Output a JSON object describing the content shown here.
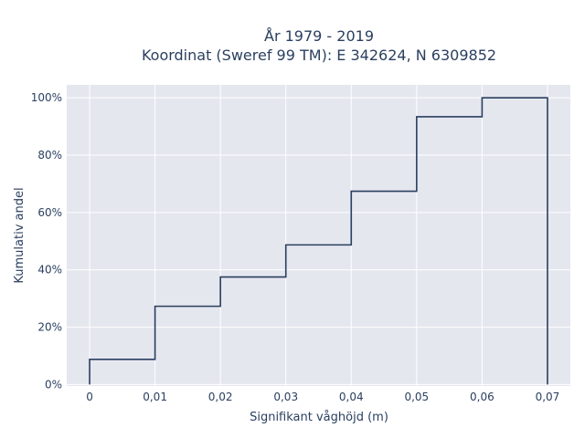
{
  "chart_data": {
    "type": "line",
    "line_shape": "step",
    "title_line1": "År 1979 - 2019",
    "title_line2": "Koordinat (Sweref 99 TM): E 342624, N 6309852",
    "xlabel": "Signifikant våghöjd (m)",
    "ylabel": "Kumulativ andel",
    "x_ticks": [
      {
        "value": 0,
        "label": "0"
      },
      {
        "value": 0.01,
        "label": "0,01"
      },
      {
        "value": 0.02,
        "label": "0,02"
      },
      {
        "value": 0.03,
        "label": "0,03"
      },
      {
        "value": 0.04,
        "label": "0,04"
      },
      {
        "value": 0.05,
        "label": "0,05"
      },
      {
        "value": 0.06,
        "label": "0,06"
      },
      {
        "value": 0.07,
        "label": "0,07"
      }
    ],
    "y_ticks": [
      {
        "value": 0,
        "label": "0%"
      },
      {
        "value": 0.2,
        "label": "20%"
      },
      {
        "value": 0.4,
        "label": "40%"
      },
      {
        "value": 0.6,
        "label": "60%"
      },
      {
        "value": 0.8,
        "label": "80%"
      },
      {
        "value": 1.0,
        "label": "100%"
      }
    ],
    "xlim": [
      -0.0035,
      0.0735
    ],
    "ylim": [
      -0.005,
      1.045
    ],
    "grid": true,
    "line_color": "#2a3f5f",
    "plot_bg": "#e5e7ef",
    "x": [
      0,
      0,
      0.01,
      0.01,
      0.02,
      0.02,
      0.03,
      0.03,
      0.04,
      0.04,
      0.05,
      0.05,
      0.06,
      0.06,
      0.07,
      0.07
    ],
    "y": [
      0,
      0.088,
      0.088,
      0.273,
      0.273,
      0.375,
      0.375,
      0.487,
      0.487,
      0.674,
      0.674,
      0.934,
      0.934,
      1.0,
      1.0,
      0
    ]
  }
}
